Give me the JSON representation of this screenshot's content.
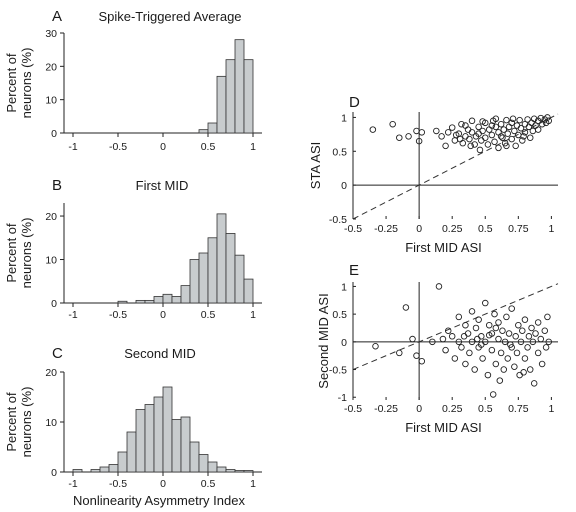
{
  "chart_data": [
    {
      "panel": "A",
      "type": "bar",
      "title": "Spike-Triggered Average",
      "ylabel": "Percent of neurons (%)",
      "xlabel": "",
      "xlim": [
        -1.1,
        1.1
      ],
      "ylim": [
        0,
        30
      ],
      "xticks": [
        "-1",
        "-0.5",
        "0",
        "0.5",
        "1"
      ],
      "yticks": [
        "0",
        "10",
        "20",
        "30"
      ],
      "bin_width": 0.1,
      "bin_centers": [
        0.45,
        0.55,
        0.65,
        0.75,
        0.85,
        0.95
      ],
      "values": [
        1,
        3,
        17,
        22,
        28,
        22
      ]
    },
    {
      "panel": "B",
      "type": "bar",
      "title": "First MID",
      "ylabel": "Percent of neurons (%)",
      "xlabel": "",
      "xlim": [
        -1.1,
        1.1
      ],
      "ylim": [
        0,
        23
      ],
      "xticks": [
        "-1",
        "-0.5",
        "0",
        "0.5",
        "1"
      ],
      "yticks": [
        "0",
        "10",
        "20"
      ],
      "bin_width": 0.1,
      "bin_centers": [
        -0.45,
        -0.25,
        -0.15,
        -0.05,
        0.05,
        0.15,
        0.25,
        0.35,
        0.45,
        0.55,
        0.65,
        0.75,
        0.85,
        0.95
      ],
      "values": [
        0.4,
        0.6,
        0.6,
        1.5,
        2,
        1.5,
        4,
        10,
        11.5,
        15,
        20.5,
        16,
        11,
        5.5
      ]
    },
    {
      "panel": "C",
      "type": "bar",
      "title": "Second MID",
      "ylabel": "Percent of neurons (%)",
      "xlabel": "Nonlinearity Asymmetry Index",
      "xlim": [
        -1.1,
        1.1
      ],
      "ylim": [
        0,
        20
      ],
      "xticks": [
        "-1",
        "-0.5",
        "0",
        "0.5",
        "1"
      ],
      "yticks": [
        "0",
        "10",
        "20"
      ],
      "bin_width": 0.1,
      "bin_centers": [
        -0.95,
        -0.75,
        -0.65,
        -0.55,
        -0.45,
        -0.35,
        -0.25,
        -0.15,
        -0.05,
        0.05,
        0.15,
        0.25,
        0.35,
        0.45,
        0.55,
        0.65,
        0.75,
        0.85,
        0.95
      ],
      "values": [
        0.5,
        0.5,
        1,
        1.5,
        4,
        8,
        12.5,
        13.5,
        15,
        17,
        10.5,
        11,
        6,
        3.5,
        2,
        1,
        0.5,
        0.3,
        0.3
      ]
    },
    {
      "panel": "D",
      "type": "scatter",
      "xlabel": "First MID ASI",
      "ylabel": "STA ASI",
      "xlim": [
        -0.5,
        1.05
      ],
      "ylim": [
        -0.5,
        1.08
      ],
      "xticks": [
        "-0.5",
        "-0.25",
        "0",
        "0.25",
        "0.5",
        "0.75",
        "1"
      ],
      "yticks": [
        "-0.5",
        "0",
        "0.5",
        "1"
      ],
      "reference_line": "y = x (dashed)",
      "points": [
        [
          -0.35,
          0.82
        ],
        [
          -0.2,
          0.9
        ],
        [
          -0.15,
          0.7
        ],
        [
          -0.08,
          0.72
        ],
        [
          -0.02,
          0.8
        ],
        [
          0.02,
          0.78
        ],
        [
          0.0,
          0.65
        ],
        [
          0.13,
          0.8
        ],
        [
          0.17,
          0.72
        ],
        [
          0.2,
          0.58
        ],
        [
          0.22,
          0.78
        ],
        [
          0.25,
          0.85
        ],
        [
          0.27,
          0.66
        ],
        [
          0.3,
          0.76
        ],
        [
          0.32,
          0.9
        ],
        [
          0.33,
          0.62
        ],
        [
          0.35,
          0.72
        ],
        [
          0.37,
          0.82
        ],
        [
          0.38,
          0.68
        ],
        [
          0.4,
          0.95
        ],
        [
          0.4,
          0.78
        ],
        [
          0.42,
          0.6
        ],
        [
          0.43,
          0.72
        ],
        [
          0.45,
          0.86
        ],
        [
          0.46,
          0.52
        ],
        [
          0.47,
          0.66
        ],
        [
          0.48,
          0.8
        ],
        [
          0.5,
          0.92
        ],
        [
          0.5,
          0.7
        ],
        [
          0.52,
          0.6
        ],
        [
          0.53,
          0.82
        ],
        [
          0.55,
          0.74
        ],
        [
          0.56,
          0.95
        ],
        [
          0.57,
          0.64
        ],
        [
          0.58,
          0.86
        ],
        [
          0.6,
          0.78
        ],
        [
          0.6,
          0.55
        ],
        [
          0.62,
          0.9
        ],
        [
          0.63,
          0.7
        ],
        [
          0.64,
          0.82
        ],
        [
          0.65,
          0.62
        ],
        [
          0.66,
          0.96
        ],
        [
          0.67,
          0.76
        ],
        [
          0.68,
          0.86
        ],
        [
          0.7,
          0.68
        ],
        [
          0.7,
          0.92
        ],
        [
          0.72,
          0.8
        ],
        [
          0.73,
          0.58
        ],
        [
          0.74,
          0.88
        ],
        [
          0.75,
          0.74
        ],
        [
          0.76,
          0.96
        ],
        [
          0.77,
          0.84
        ],
        [
          0.78,
          0.66
        ],
        [
          0.8,
          0.9
        ],
        [
          0.8,
          0.78
        ],
        [
          0.82,
          0.97
        ],
        [
          0.83,
          0.86
        ],
        [
          0.84,
          0.7
        ],
        [
          0.85,
          0.92
        ],
        [
          0.86,
          0.8
        ],
        [
          0.87,
          0.98
        ],
        [
          0.88,
          0.88
        ],
        [
          0.9,
          0.95
        ],
        [
          0.9,
          0.82
        ],
        [
          0.92,
          0.99
        ],
        [
          0.93,
          0.9
        ],
        [
          0.95,
          0.97
        ],
        [
          0.96,
          0.92
        ],
        [
          0.97,
          1.0
        ],
        [
          0.98,
          0.95
        ],
        [
          0.55,
          0.88
        ],
        [
          0.45,
          0.76
        ],
        [
          0.35,
          0.88
        ],
        [
          0.28,
          0.74
        ],
        [
          0.62,
          0.72
        ],
        [
          0.71,
          0.98
        ],
        [
          0.79,
          0.72
        ],
        [
          0.66,
          0.58
        ],
        [
          0.58,
          0.98
        ],
        [
          0.48,
          0.94
        ],
        [
          0.39,
          0.58
        ],
        [
          0.31,
          0.68
        ]
      ]
    },
    {
      "panel": "E",
      "type": "scatter",
      "xlabel": "First MID ASI",
      "ylabel": "Second MID ASI",
      "xlim": [
        -0.5,
        1.05
      ],
      "ylim": [
        -1.05,
        1.08
      ],
      "xticks": [
        "-0.5",
        "-0.25",
        "0",
        "0.25",
        "0.5",
        "0.75",
        "1"
      ],
      "yticks": [
        "-1",
        "-0.5",
        "0",
        "0.5",
        "1"
      ],
      "reference_line": "y = x (dashed)",
      "points": [
        [
          -0.33,
          -0.08
        ],
        [
          -0.15,
          -0.2
        ],
        [
          -0.05,
          0.05
        ],
        [
          -0.02,
          -0.25
        ],
        [
          -0.1,
          0.62
        ],
        [
          0.02,
          -0.35
        ],
        [
          0.1,
          0.0
        ],
        [
          0.15,
          1.0
        ],
        [
          0.18,
          0.05
        ],
        [
          0.2,
          -0.15
        ],
        [
          0.22,
          0.2
        ],
        [
          0.25,
          0.1
        ],
        [
          0.27,
          -0.3
        ],
        [
          0.3,
          0.45
        ],
        [
          0.3,
          0.0
        ],
        [
          0.32,
          -0.1
        ],
        [
          0.35,
          0.3
        ],
        [
          0.35,
          -0.4
        ],
        [
          0.37,
          0.15
        ],
        [
          0.38,
          -0.2
        ],
        [
          0.4,
          0.55
        ],
        [
          0.4,
          0.0
        ],
        [
          0.42,
          -0.5
        ],
        [
          0.43,
          0.25
        ],
        [
          0.45,
          -0.1
        ],
        [
          0.45,
          0.4
        ],
        [
          0.47,
          0.1
        ],
        [
          0.48,
          -0.3
        ],
        [
          0.5,
          0.7
        ],
        [
          0.5,
          0.0
        ],
        [
          0.52,
          -0.6
        ],
        [
          0.53,
          0.3
        ],
        [
          0.55,
          -0.15
        ],
        [
          0.55,
          0.15
        ],
        [
          0.56,
          -0.95
        ],
        [
          0.57,
          0.5
        ],
        [
          0.58,
          -0.4
        ],
        [
          0.6,
          0.05
        ],
        [
          0.6,
          0.35
        ],
        [
          0.62,
          -0.2
        ],
        [
          0.63,
          0.2
        ],
        [
          0.64,
          -0.5
        ],
        [
          0.65,
          0.0
        ],
        [
          0.66,
          0.45
        ],
        [
          0.67,
          -0.3
        ],
        [
          0.68,
          0.15
        ],
        [
          0.7,
          -0.1
        ],
        [
          0.7,
          0.6
        ],
        [
          0.72,
          -0.45
        ],
        [
          0.73,
          0.1
        ],
        [
          0.74,
          -0.2
        ],
        [
          0.75,
          0.3
        ],
        [
          0.76,
          -0.6
        ],
        [
          0.77,
          0.0
        ],
        [
          0.78,
          0.2
        ],
        [
          0.8,
          -0.3
        ],
        [
          0.8,
          0.4
        ],
        [
          0.82,
          -0.1
        ],
        [
          0.83,
          0.1
        ],
        [
          0.84,
          -0.5
        ],
        [
          0.85,
          0.25
        ],
        [
          0.86,
          0.0
        ],
        [
          0.87,
          -0.75
        ],
        [
          0.88,
          0.15
        ],
        [
          0.9,
          -0.2
        ],
        [
          0.9,
          0.35
        ],
        [
          0.92,
          0.05
        ],
        [
          0.93,
          -0.4
        ],
        [
          0.95,
          0.2
        ],
        [
          0.96,
          -0.1
        ],
        [
          0.97,
          0.45
        ],
        [
          0.98,
          0.0
        ],
        [
          0.44,
          0.05
        ],
        [
          0.58,
          0.25
        ],
        [
          0.69,
          -0.05
        ],
        [
          0.61,
          -0.7
        ],
        [
          0.79,
          -0.55
        ],
        [
          0.34,
          0.1
        ],
        [
          0.47,
          -0.05
        ],
        [
          0.53,
          0.12
        ]
      ]
    }
  ]
}
